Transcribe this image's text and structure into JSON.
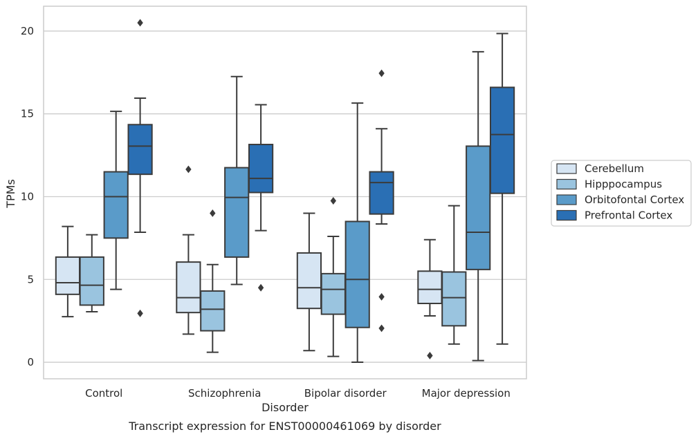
{
  "chart_data": {
    "type": "box",
    "caption": "Transcript expression for ENST00000461069 by disorder",
    "xlabel": "Disorder",
    "ylabel": "TPMs",
    "ylim": [
      -1,
      21.5
    ],
    "yticks": [
      0,
      5,
      10,
      15,
      20
    ],
    "grid": true,
    "legend_position": "right",
    "categories": [
      "Control",
      "Schizophrenia",
      "Bipolar disorder",
      "Major depression"
    ],
    "series": [
      {
        "name": "Cerebellum",
        "color": "#d6e5f3",
        "boxes": [
          {
            "whisker_low": 2.75,
            "q1": 4.1,
            "median": 4.8,
            "q3": 6.35,
            "whisker_high": 8.2,
            "outliers": []
          },
          {
            "whisker_low": 1.7,
            "q1": 3.0,
            "median": 3.9,
            "q3": 6.05,
            "whisker_high": 7.7,
            "outliers": [
              11.65
            ]
          },
          {
            "whisker_low": 0.7,
            "q1": 3.25,
            "median": 4.5,
            "q3": 6.6,
            "whisker_high": 9.0,
            "outliers": []
          },
          {
            "whisker_low": 2.8,
            "q1": 3.55,
            "median": 4.4,
            "q3": 5.5,
            "whisker_high": 7.4,
            "outliers": [
              0.4
            ]
          }
        ]
      },
      {
        "name": "Hipppocampus",
        "color": "#9ac4df",
        "boxes": [
          {
            "whisker_low": 3.05,
            "q1": 3.45,
            "median": 4.65,
            "q3": 6.35,
            "whisker_high": 7.7,
            "outliers": []
          },
          {
            "whisker_low": 0.6,
            "q1": 1.9,
            "median": 3.2,
            "q3": 4.3,
            "whisker_high": 5.9,
            "outliers": [
              9.0
            ]
          },
          {
            "whisker_low": 0.35,
            "q1": 2.9,
            "median": 4.4,
            "q3": 5.35,
            "whisker_high": 7.6,
            "outliers": [
              9.75
            ]
          },
          {
            "whisker_low": 1.1,
            "q1": 2.2,
            "median": 3.9,
            "q3": 5.45,
            "whisker_high": 9.45,
            "outliers": []
          }
        ]
      },
      {
        "name": "Orbitofontal Cortex",
        "color": "#5a9bc9",
        "boxes": [
          {
            "whisker_low": 4.4,
            "q1": 7.5,
            "median": 10.0,
            "q3": 11.5,
            "whisker_high": 15.15,
            "outliers": []
          },
          {
            "whisker_low": 4.7,
            "q1": 6.35,
            "median": 9.95,
            "q3": 11.75,
            "whisker_high": 17.25,
            "outliers": []
          },
          {
            "whisker_low": 0.0,
            "q1": 2.1,
            "median": 5.0,
            "q3": 8.5,
            "whisker_high": 15.65,
            "outliers": []
          },
          {
            "whisker_low": 0.1,
            "q1": 5.6,
            "median": 7.85,
            "q3": 13.05,
            "whisker_high": 18.75,
            "outliers": []
          }
        ]
      },
      {
        "name": "Prefrontal Cortex",
        "color": "#2a6fb4",
        "boxes": [
          {
            "whisker_low": 7.85,
            "q1": 11.35,
            "median": 13.05,
            "q3": 14.35,
            "whisker_high": 15.95,
            "outliers": [
              2.95,
              20.5
            ]
          },
          {
            "whisker_low": 7.95,
            "q1": 10.25,
            "median": 11.1,
            "q3": 13.15,
            "whisker_high": 15.55,
            "outliers": [
              4.5
            ]
          },
          {
            "whisker_low": 8.35,
            "q1": 8.95,
            "median": 10.85,
            "q3": 11.5,
            "whisker_high": 14.1,
            "outliers": [
              2.05,
              3.95,
              17.45
            ]
          },
          {
            "whisker_low": 1.1,
            "q1": 10.2,
            "median": 13.75,
            "q3": 16.6,
            "whisker_high": 19.85,
            "outliers": []
          }
        ]
      }
    ]
  }
}
